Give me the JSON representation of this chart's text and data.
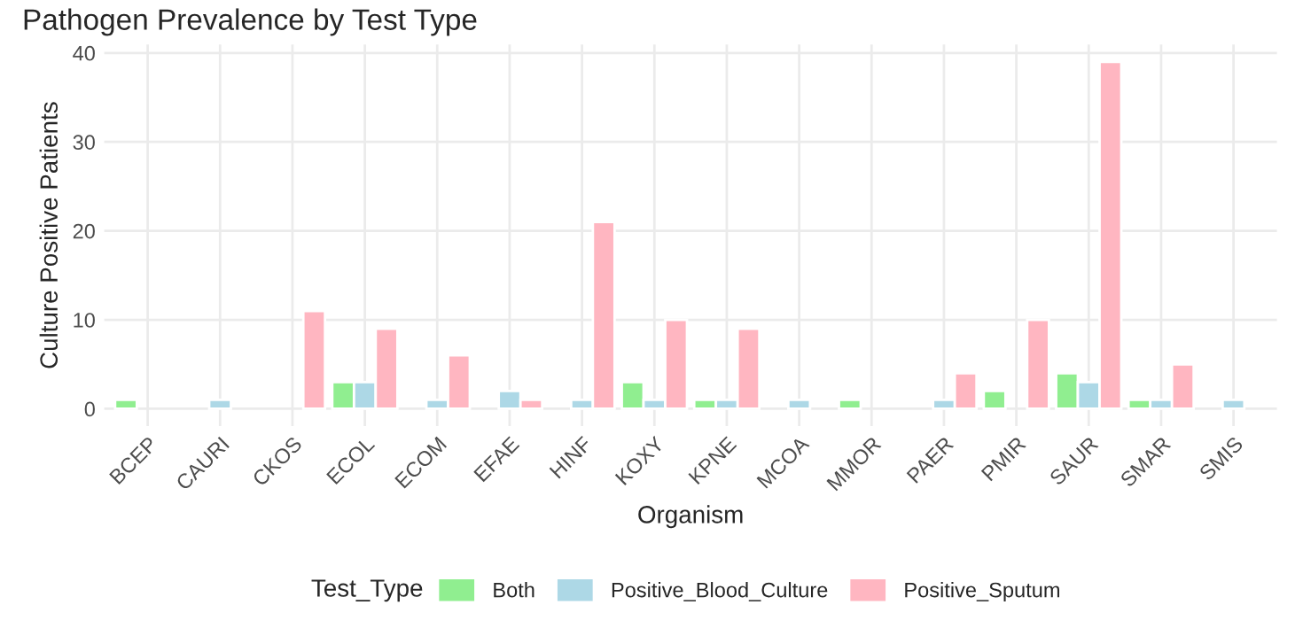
{
  "chart_data": {
    "type": "bar",
    "title": "Pathogen Prevalence by Test Type",
    "xlabel": "Organism",
    "ylabel": "Culture Positive Patients",
    "legend_title": "Test_Type",
    "categories": [
      "BCEP",
      "CAURI",
      "CKOS",
      "ECOL",
      "ECOM",
      "EFAE",
      "HINF",
      "KOXY",
      "KPNE",
      "MCOA",
      "MMOR",
      "PAER",
      "PMIR",
      "SAUR",
      "SMAR",
      "SMIS"
    ],
    "series": [
      {
        "name": "Both",
        "color": "#90ee90",
        "values": [
          1,
          null,
          null,
          3,
          null,
          null,
          null,
          3,
          1,
          null,
          1,
          null,
          2,
          4,
          1,
          null
        ]
      },
      {
        "name": "Positive_Blood_Culture",
        "color": "#add8e6",
        "values": [
          null,
          1,
          null,
          3,
          1,
          2,
          1,
          1,
          1,
          1,
          null,
          1,
          null,
          3,
          1,
          1
        ]
      },
      {
        "name": "Positive_Sputum",
        "color": "#ffb6c1",
        "values": [
          null,
          null,
          11,
          9,
          6,
          1,
          21,
          10,
          9,
          null,
          null,
          4,
          10,
          39,
          5,
          null
        ]
      }
    ],
    "ylim": [
      -1.95,
      40.95
    ],
    "yticks": [
      0,
      10,
      20,
      30,
      40
    ],
    "grid": true,
    "legend": "bottom"
  }
}
